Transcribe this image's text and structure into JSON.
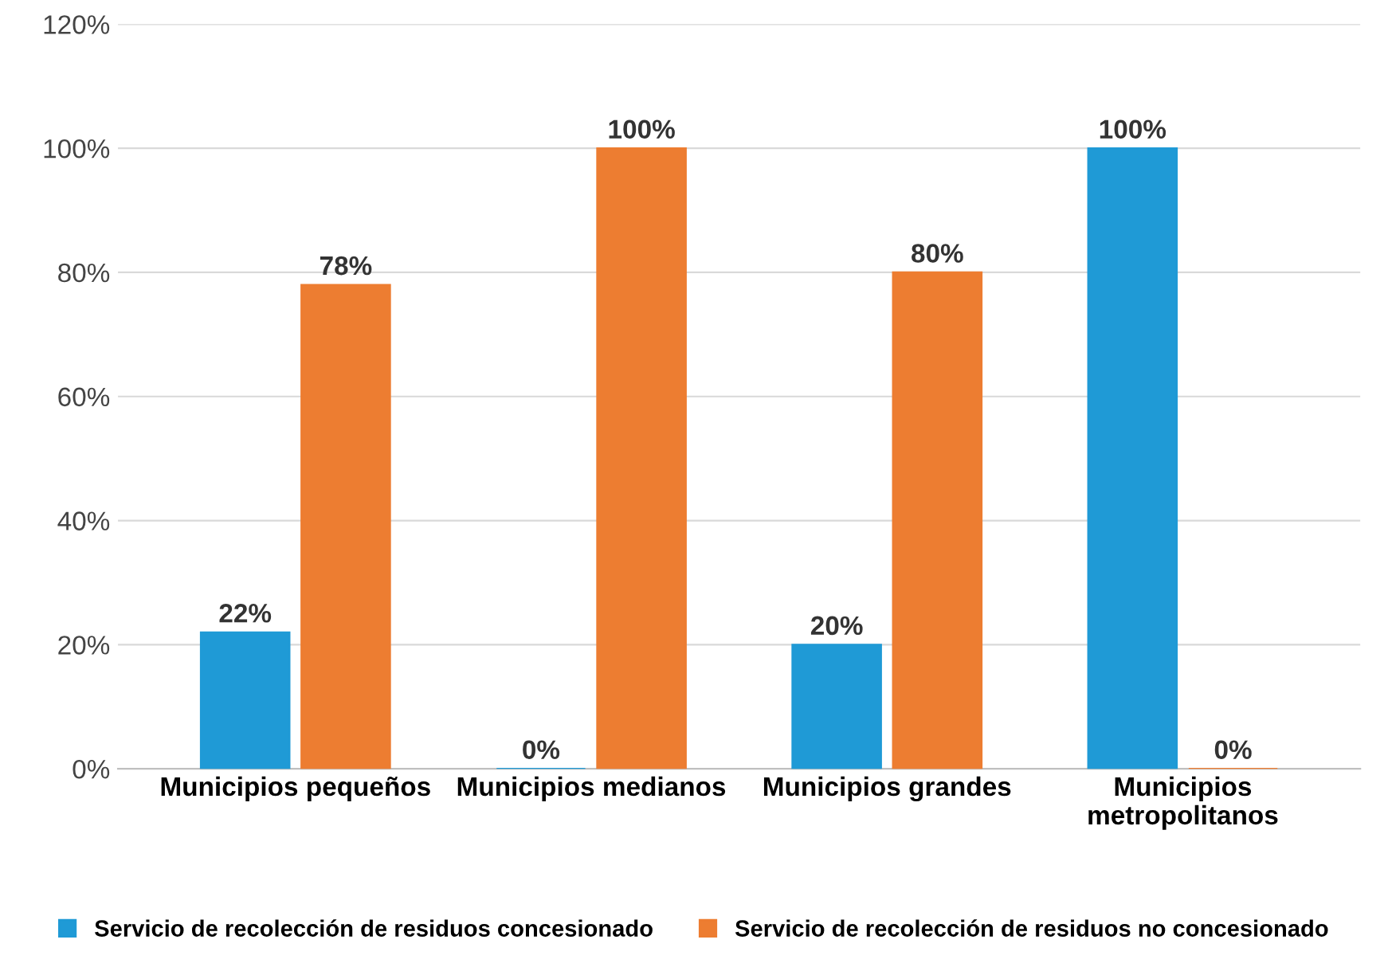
{
  "chart_data": {
    "type": "bar",
    "categories": [
      "Municipios pequeños",
      "Municipios medianos",
      "Municipios grandes",
      "Municipios\nmetropolitanos"
    ],
    "series": [
      {
        "name": "Servicio de recolección de residuos concesionado",
        "color": "#1f9ad6",
        "values": [
          22,
          0,
          20,
          100
        ],
        "value_labels": [
          "22%",
          "0%",
          "20%",
          "100%"
        ]
      },
      {
        "name": "Servicio de recolección de residuos no concesionado",
        "color": "#ed7d31",
        "values": [
          78,
          100,
          80,
          0
        ],
        "value_labels": [
          "78%",
          "100%",
          "80%",
          "0%"
        ]
      }
    ],
    "ylim": [
      0,
      120
    ],
    "yticks": [
      {
        "value": 0,
        "label": "0%"
      },
      {
        "value": 20,
        "label": "20%"
      },
      {
        "value": 40,
        "label": "40%"
      },
      {
        "value": 60,
        "label": "60%"
      },
      {
        "value": 80,
        "label": "80%"
      },
      {
        "value": 100,
        "label": "100%"
      },
      {
        "value": 120,
        "label": "120%"
      }
    ],
    "grid": "y",
    "legend": "bottom"
  }
}
